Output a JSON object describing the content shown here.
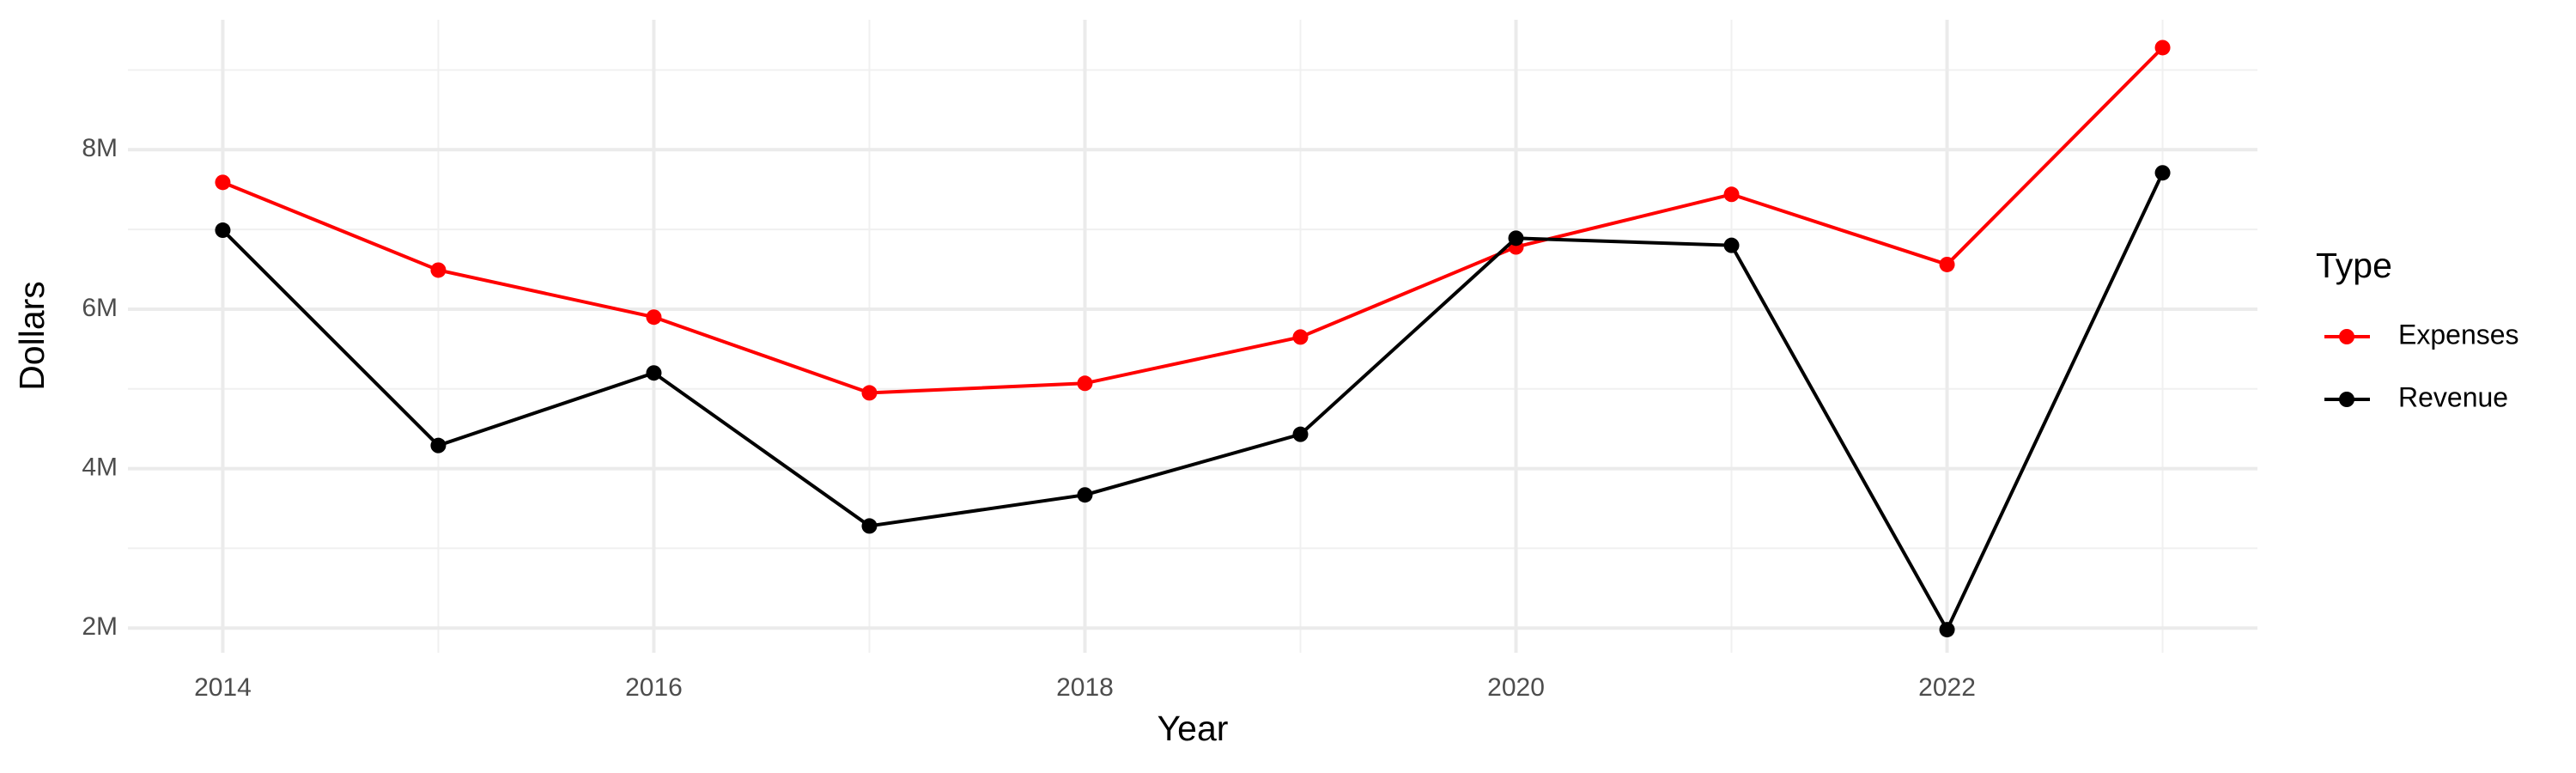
{
  "chart_data": {
    "type": "line",
    "x_label": "Year",
    "y_label": "Dollars",
    "x": [
      2014,
      2015,
      2016,
      2017,
      2018,
      2019,
      2020,
      2021,
      2022,
      2023
    ],
    "series": [
      {
        "name": "Expenses",
        "color": "#ff0000",
        "values": [
          7590000,
          6490000,
          5900000,
          4950000,
          5070000,
          5650000,
          6780000,
          7440000,
          6560000,
          9280000
        ]
      },
      {
        "name": "Revenue",
        "color": "#000000",
        "values": [
          6990000,
          4290000,
          5200000,
          3280000,
          3670000,
          4430000,
          6890000,
          6800000,
          1980000,
          7710000
        ]
      }
    ],
    "xlim": [
      2013.56,
      2023.44
    ],
    "xticks": [
      2014,
      2016,
      2018,
      2020,
      2022
    ],
    "ylim": [
      1690000,
      9630000
    ],
    "yticks": [
      {
        "value": 2000000,
        "label": "2M"
      },
      {
        "value": 4000000,
        "label": "4M"
      },
      {
        "value": 6000000,
        "label": "6M"
      },
      {
        "value": 8000000,
        "label": "8M"
      }
    ],
    "grid": true,
    "minor_grid": true,
    "legend_title": "Type",
    "legend_position": "right"
  }
}
